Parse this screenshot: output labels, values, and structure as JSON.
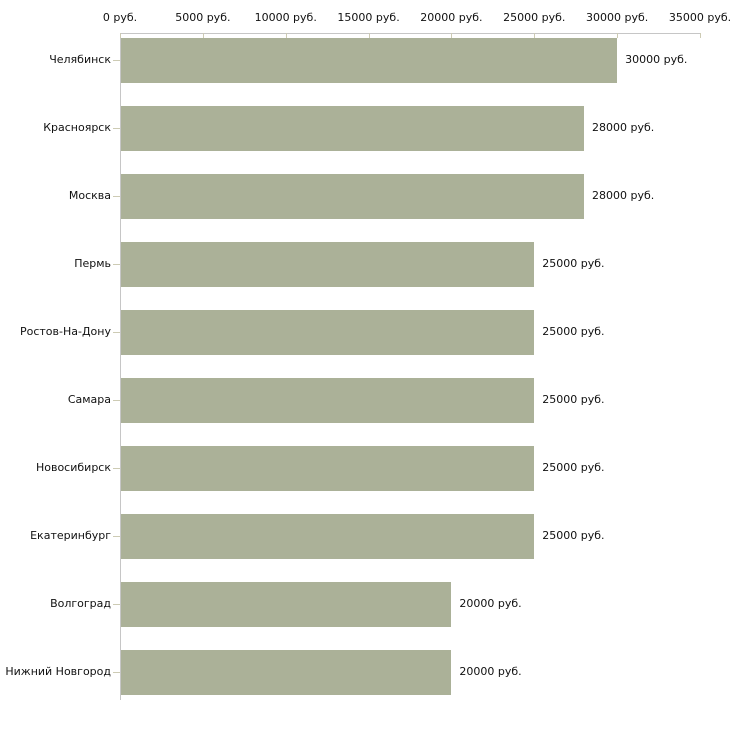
{
  "chart_data": {
    "type": "bar",
    "orientation": "horizontal",
    "categories": [
      "Челябинск",
      "Красноярск",
      "Москва",
      "Пермь",
      "Ростов-На-Дону",
      "Самара",
      "Новосибирск",
      "Екатеринбург",
      "Волгоград",
      "Нижний Новгород"
    ],
    "values": [
      30000,
      28000,
      28000,
      25000,
      25000,
      25000,
      25000,
      25000,
      20000,
      20000
    ],
    "value_labels": [
      "30000 руб.",
      "28000 руб.",
      "28000 руб.",
      "25000 руб.",
      "25000 руб.",
      "25000 руб.",
      "25000 руб.",
      "25000 руб.",
      "20000 руб.",
      "20000 руб."
    ],
    "unit": "руб.",
    "x_axis": {
      "position": "top",
      "min": 0,
      "max": 35000,
      "ticks": [
        0,
        5000,
        10000,
        15000,
        20000,
        25000,
        30000,
        35000
      ],
      "tick_labels": [
        "0 руб.",
        "5000 руб.",
        "10000 руб.",
        "15000 руб.",
        "20000 руб.",
        "25000 руб.",
        "30000 руб.",
        "35000 руб."
      ]
    },
    "title": "",
    "xlabel": "",
    "ylabel": "",
    "grid": false,
    "legend": false,
    "colors": {
      "bar": "#abb198",
      "axis": "#c6c6c6",
      "tick": "#cdcbb4",
      "text": "#111111",
      "background": "#ffffff"
    }
  }
}
